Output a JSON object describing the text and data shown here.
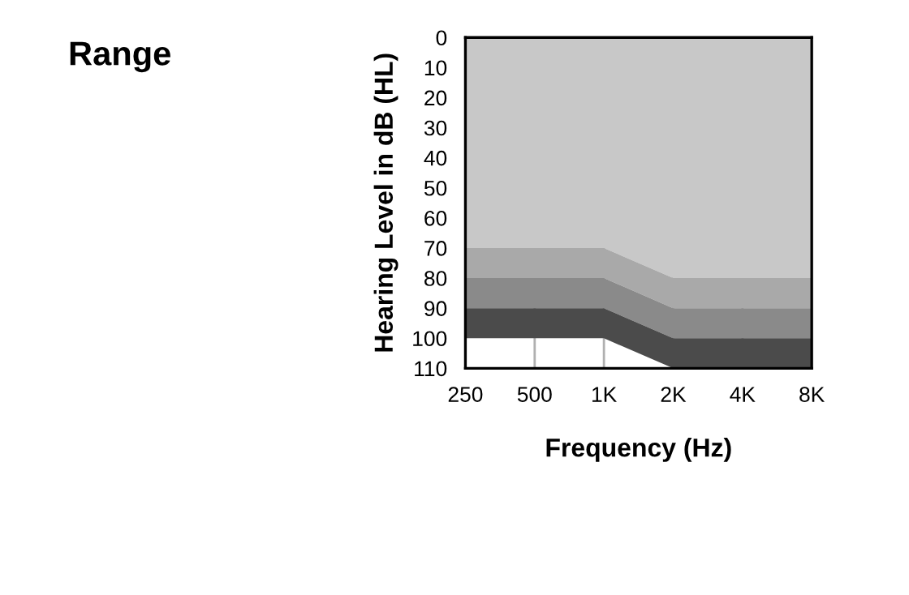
{
  "chart_data": {
    "type": "area",
    "title": "Range",
    "xlabel": "Frequency (Hz)",
    "ylabel": "Hearing Level in dB (HL)",
    "categories": [
      "250",
      "500",
      "1K",
      "2K",
      "4K",
      "8K"
    ],
    "stacked": true,
    "series": [
      {
        "color": "#c8c8c8",
        "values": [
          70,
          70,
          70,
          80,
          80,
          80
        ]
      },
      {
        "color": "#a9a9a9",
        "values": [
          10,
          10,
          10,
          10,
          10,
          10
        ]
      },
      {
        "color": "#8a8a8a",
        "values": [
          10,
          10,
          10,
          10,
          10,
          10
        ]
      },
      {
        "color": "#4b4b4b",
        "values": [
          10,
          10,
          10,
          10,
          10,
          10
        ]
      }
    ],
    "ylim": [
      110,
      0
    ],
    "yticks": [
      0,
      10,
      20,
      30,
      40,
      50,
      60,
      70,
      80,
      90,
      100,
      110
    ],
    "grid": "x"
  }
}
